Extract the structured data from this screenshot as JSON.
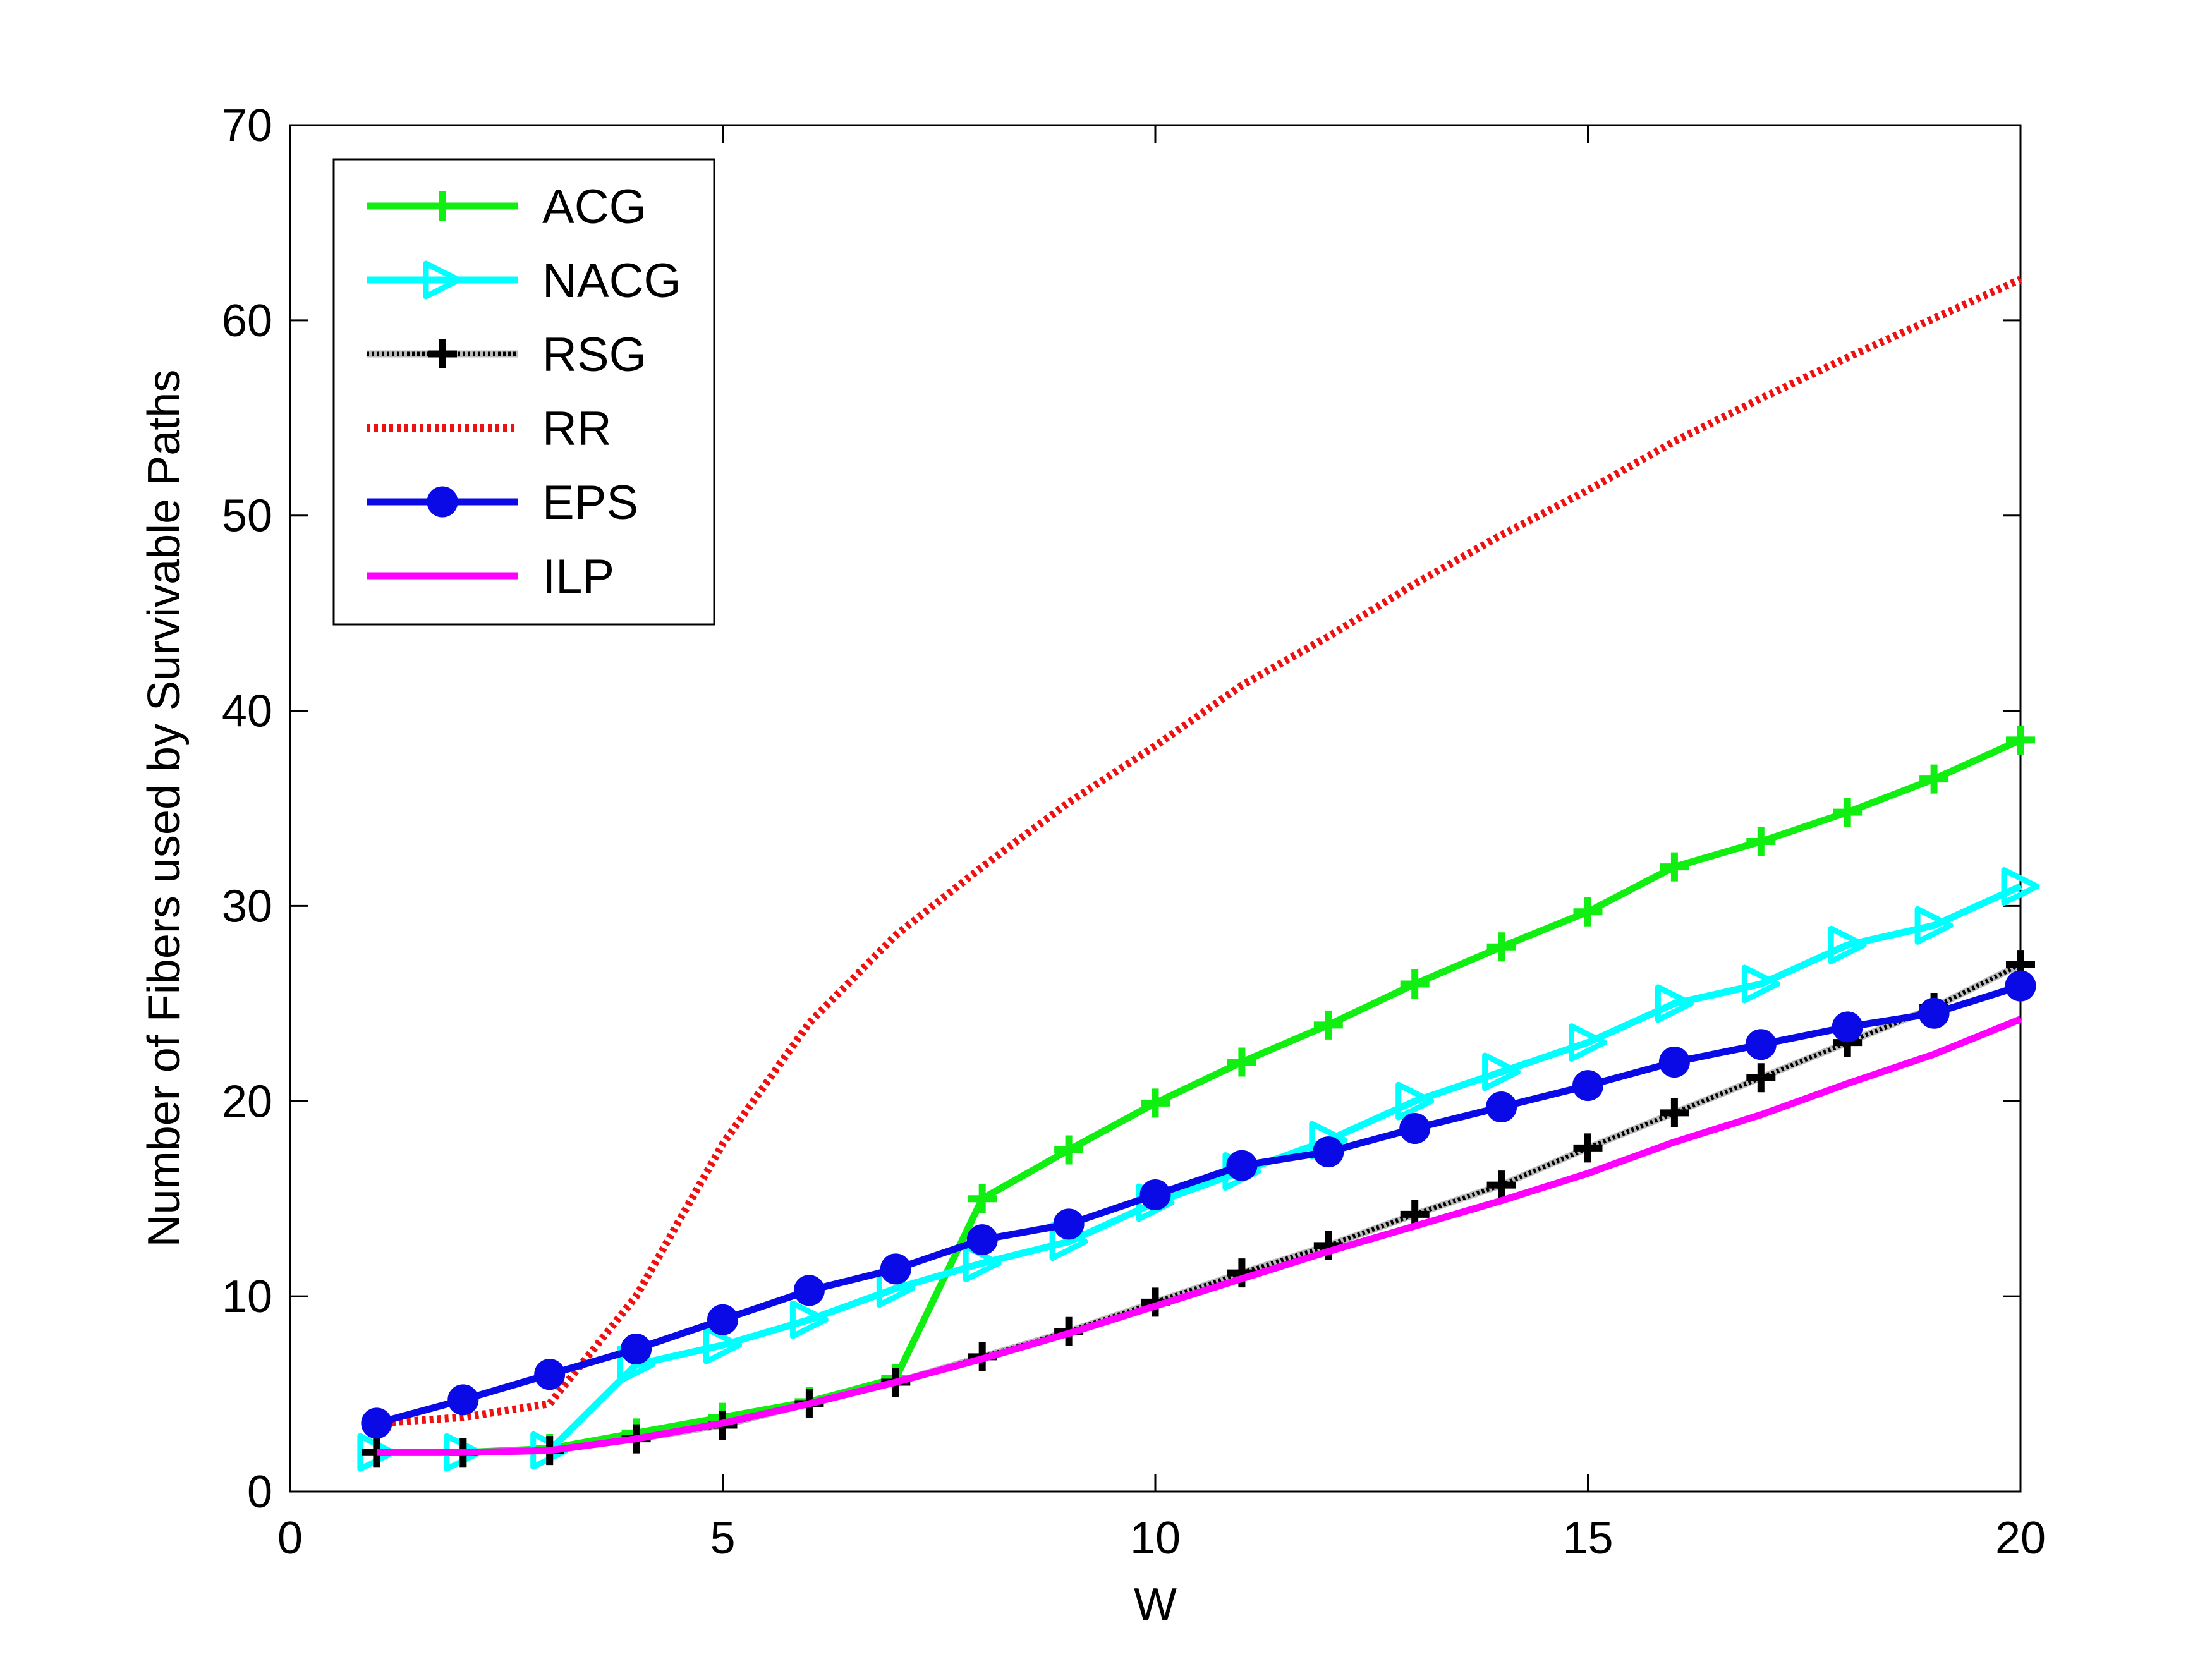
{
  "chart_data": {
    "type": "line",
    "title": "",
    "xlabel": "W",
    "ylabel": "Number of Fibers used by Survivable Paths",
    "xlim": [
      0,
      20
    ],
    "ylim": [
      0,
      70
    ],
    "xticks": [
      0,
      5,
      10,
      15,
      20
    ],
    "yticks": [
      0,
      10,
      20,
      30,
      40,
      50,
      60,
      70
    ],
    "legend_position": "top-left",
    "x": [
      1,
      2,
      3,
      4,
      5,
      6,
      7,
      8,
      9,
      10,
      11,
      12,
      13,
      14,
      15,
      16,
      17,
      18,
      19,
      20
    ],
    "series": [
      {
        "name": "ACG",
        "color": "#11ee11",
        "style": "solid",
        "marker": "plus",
        "values": [
          2,
          2,
          2.2,
          3,
          3.8,
          4.6,
          5.8,
          15,
          17.5,
          19.9,
          22,
          23.9,
          26,
          27.9,
          29.7,
          32,
          33.3,
          34.8,
          36.5,
          38.5
        ]
      },
      {
        "name": "NACG",
        "color": "#00ffff",
        "style": "solid",
        "marker": "triangle-right",
        "values": [
          2,
          2,
          2.1,
          6.5,
          7.5,
          8.8,
          10.4,
          11.7,
          12.8,
          14.8,
          16.4,
          18,
          20,
          21.5,
          23,
          25,
          26,
          28,
          29,
          31
        ]
      },
      {
        "name": "RSG",
        "color": "#000000",
        "style": "dotted",
        "marker": "plus",
        "values": [
          2,
          2,
          2.1,
          2.7,
          3.4,
          4.5,
          5.6,
          6.9,
          8.2,
          9.7,
          11.2,
          12.6,
          14.2,
          15.7,
          17.6,
          19.4,
          21.2,
          23,
          24.8,
          27
        ]
      },
      {
        "name": "RR",
        "color": "#ee1111",
        "style": "dotted",
        "marker": "none",
        "values": [
          3.5,
          3.8,
          4.5,
          10,
          17.8,
          24,
          28.5,
          32,
          35.3,
          38.2,
          41.3,
          43.8,
          46.5,
          49,
          51.3,
          53.8,
          56,
          58.1,
          60.1,
          62.1
        ]
      },
      {
        "name": "EPS",
        "color": "#0a0ae6",
        "style": "solid",
        "marker": "circle",
        "values": [
          3.5,
          4.7,
          6,
          7.3,
          8.8,
          10.3,
          11.4,
          12.9,
          13.7,
          15.2,
          16.7,
          17.4,
          18.6,
          19.7,
          20.8,
          22,
          22.9,
          23.8,
          24.5,
          25.9
        ]
      },
      {
        "name": "ILP",
        "color": "#ff00ff",
        "style": "solid",
        "marker": "none",
        "values": [
          2,
          2,
          2.1,
          2.7,
          3.5,
          4.5,
          5.6,
          6.8,
          8.1,
          9.5,
          10.9,
          12.3,
          13.6,
          14.9,
          16.3,
          17.9,
          19.3,
          20.9,
          22.4,
          24.2
        ]
      }
    ]
  }
}
